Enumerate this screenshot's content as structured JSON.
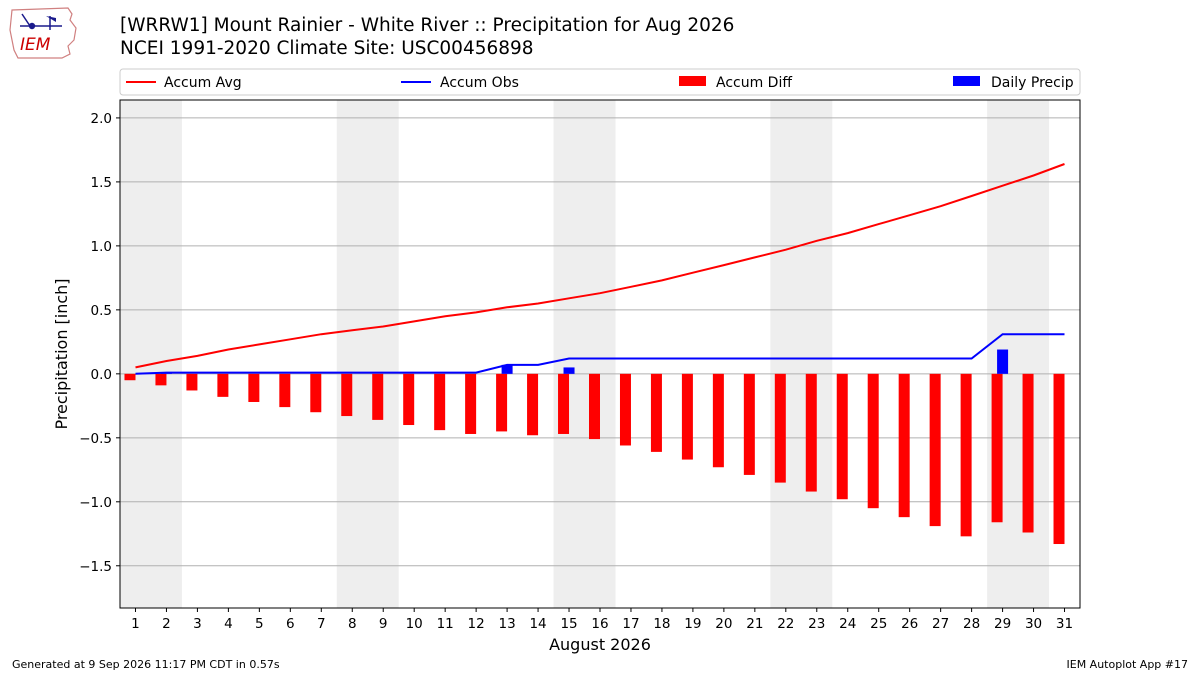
{
  "header": {
    "title_line1": "[WRRW1] Mount Rainier - White River :: Precipitation for Aug 2026",
    "title_line2": "NCEI 1991-2020 Climate Site: USC00456898",
    "logo_text": "IEM"
  },
  "footer": {
    "generated": "Generated at 9 Sep 2026 11:17 PM CDT in 0.57s",
    "app": "IEM Autoplot App #17"
  },
  "colors": {
    "avg": "#ff0000",
    "obs": "#0000ff",
    "diff": "#ff0000",
    "daily": "#0000ff",
    "weekend_shade": "#eeeeee",
    "grid": "#b0b0b0"
  },
  "chart_data": {
    "type": "bar",
    "xlabel": "August 2026",
    "ylabel": "Precipitation [inch]",
    "ylim": [
      -1.83,
      2.14
    ],
    "yticks": [
      -1.5,
      -1.0,
      -0.5,
      0.0,
      0.5,
      1.0,
      1.5,
      2.0
    ],
    "ytick_labels": [
      "−1.5",
      "−1.0",
      "−0.5",
      "0.0",
      "0.5",
      "1.0",
      "1.5",
      "2.0"
    ],
    "xlim": [
      0.5,
      31.5
    ],
    "x": [
      1,
      2,
      3,
      4,
      5,
      6,
      7,
      8,
      9,
      10,
      11,
      12,
      13,
      14,
      15,
      16,
      17,
      18,
      19,
      20,
      21,
      22,
      23,
      24,
      25,
      26,
      27,
      28,
      29,
      30,
      31
    ],
    "x_tick_labels": [
      "1",
      "2",
      "3",
      "4",
      "5",
      "6",
      "7",
      "8",
      "9",
      "10",
      "11",
      "12",
      "13",
      "14",
      "15",
      "16",
      "17",
      "18",
      "19",
      "20",
      "21",
      "22",
      "23",
      "24",
      "25",
      "26",
      "27",
      "28",
      "29",
      "30",
      "31"
    ],
    "shaded_days": [
      [
        1,
        2
      ],
      [
        8,
        9
      ],
      [
        15,
        16
      ],
      [
        22,
        23
      ],
      [
        29,
        30
      ]
    ],
    "grid": "horizontal",
    "legend_position": "top",
    "series": [
      {
        "name": "Accum Avg",
        "type": "line",
        "values": [
          0.05,
          0.1,
          0.14,
          0.19,
          0.23,
          0.27,
          0.31,
          0.34,
          0.37,
          0.41,
          0.45,
          0.48,
          0.52,
          0.55,
          0.59,
          0.63,
          0.68,
          0.73,
          0.79,
          0.85,
          0.91,
          0.97,
          1.04,
          1.1,
          1.17,
          1.24,
          1.31,
          1.39,
          1.47,
          1.55,
          1.64
        ]
      },
      {
        "name": "Accum Obs",
        "type": "line",
        "values": [
          0.0,
          0.01,
          0.01,
          0.01,
          0.01,
          0.01,
          0.01,
          0.01,
          0.01,
          0.01,
          0.01,
          0.01,
          0.07,
          0.07,
          0.12,
          0.12,
          0.12,
          0.12,
          0.12,
          0.12,
          0.12,
          0.12,
          0.12,
          0.12,
          0.12,
          0.12,
          0.12,
          0.12,
          0.31,
          0.31,
          0.31
        ]
      },
      {
        "name": "Accum Diff",
        "type": "bar",
        "values": [
          -0.05,
          -0.09,
          -0.13,
          -0.18,
          -0.22,
          -0.26,
          -0.3,
          -0.33,
          -0.36,
          -0.4,
          -0.44,
          -0.47,
          -0.45,
          -0.48,
          -0.47,
          -0.51,
          -0.56,
          -0.61,
          -0.67,
          -0.73,
          -0.79,
          -0.85,
          -0.92,
          -0.98,
          -1.05,
          -1.12,
          -1.19,
          -1.27,
          -1.16,
          -1.24,
          -1.33
        ]
      },
      {
        "name": "Daily Precip",
        "type": "bar",
        "values": [
          0,
          0.01,
          0,
          0,
          0,
          0,
          0,
          0,
          0,
          0,
          0,
          0,
          0.07,
          0,
          0.05,
          0,
          0,
          0,
          0,
          0,
          0,
          0,
          0,
          0,
          0,
          0,
          0,
          0,
          0.19,
          0,
          0
        ]
      }
    ]
  }
}
